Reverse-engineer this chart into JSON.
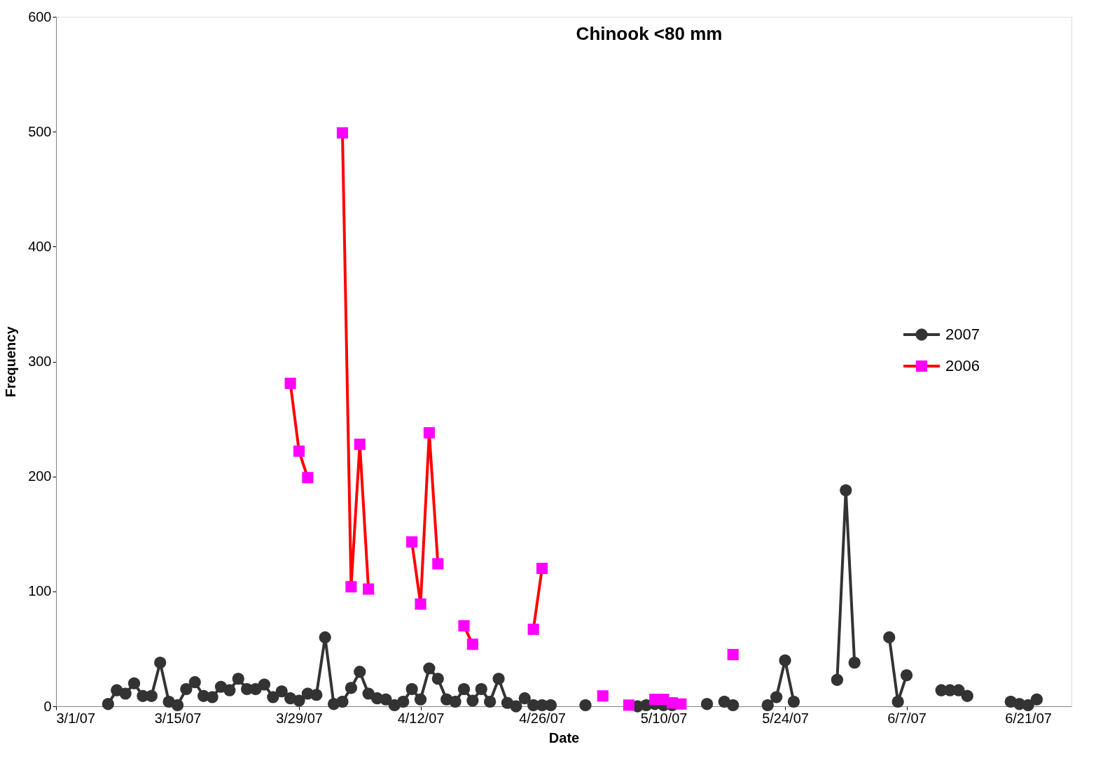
{
  "chart_data": {
    "type": "line",
    "title": "Chinook <80 mm",
    "xlabel": "Date",
    "ylabel": "Frequency",
    "xlim": [
      "2007-03-01",
      "2007-06-26"
    ],
    "xticks": [
      {
        "value": "2007-03-01",
        "label": "3/1/07"
      },
      {
        "value": "2007-03-15",
        "label": "3/15/07"
      },
      {
        "value": "2007-03-29",
        "label": "3/29/07"
      },
      {
        "value": "2007-04-12",
        "label": "4/12/07"
      },
      {
        "value": "2007-04-26",
        "label": "4/26/07"
      },
      {
        "value": "2007-05-10",
        "label": "5/10/07"
      },
      {
        "value": "2007-05-24",
        "label": "5/24/07"
      },
      {
        "value": "2007-06-07",
        "label": "6/7/07"
      },
      {
        "value": "2007-06-21",
        "label": "6/21/07"
      }
    ],
    "ylim": [
      0,
      600
    ],
    "yticks": [
      0,
      100,
      200,
      300,
      400,
      500,
      600
    ],
    "grid": false,
    "legend": "right",
    "series": [
      {
        "name": "2007",
        "color": "#333333",
        "marker": "circle",
        "x": [
          "2007-03-07",
          "2007-03-08",
          "2007-03-09",
          "2007-03-10",
          "2007-03-11",
          "2007-03-12",
          "2007-03-13",
          "2007-03-14",
          "2007-03-15",
          "2007-03-16",
          "2007-03-17",
          "2007-03-18",
          "2007-03-19",
          "2007-03-20",
          "2007-03-21",
          "2007-03-22",
          "2007-03-23",
          "2007-03-24",
          "2007-03-25",
          "2007-03-26",
          "2007-03-27",
          "2007-03-28",
          "2007-03-29",
          "2007-03-30",
          "2007-03-31",
          "2007-04-01",
          "2007-04-02",
          "2007-04-03",
          "2007-04-04",
          "2007-04-05",
          "2007-04-06",
          "2007-04-07",
          "2007-04-08",
          "2007-04-09",
          "2007-04-10",
          "2007-04-11",
          "2007-04-12",
          "2007-04-13",
          "2007-04-14",
          "2007-04-15",
          "2007-04-16",
          "2007-04-17",
          "2007-04-18",
          "2007-04-19",
          "2007-04-20",
          "2007-04-21",
          "2007-04-22",
          "2007-04-23",
          "2007-04-24",
          "2007-04-25",
          "2007-04-26",
          "2007-04-27",
          "2007-04-28",
          "2007-05-01",
          "2007-05-02",
          "2007-05-07",
          "2007-05-08",
          "2007-05-09",
          "2007-05-10",
          "2007-05-11",
          "2007-05-12",
          "2007-05-15",
          "2007-05-16",
          "2007-05-17",
          "2007-05-18",
          "2007-05-19",
          "2007-05-22",
          "2007-05-23",
          "2007-05-24",
          "2007-05-25",
          "2007-05-26",
          "2007-05-30",
          "2007-05-31",
          "2007-06-01",
          "2007-06-02",
          "2007-06-05",
          "2007-06-06",
          "2007-06-07",
          "2007-06-08",
          "2007-06-11",
          "2007-06-12",
          "2007-06-13",
          "2007-06-14",
          "2007-06-15",
          "2007-06-19",
          "2007-06-20",
          "2007-06-21",
          "2007-06-22"
        ],
        "values": [
          2,
          14,
          11,
          20,
          9,
          9,
          38,
          4,
          1,
          15,
          21,
          9,
          8,
          17,
          14,
          24,
          15,
          15,
          19,
          8,
          13,
          7,
          5,
          11,
          10,
          60,
          2,
          4,
          16,
          30,
          11,
          7,
          6,
          1,
          4,
          15,
          6,
          33,
          24,
          6,
          4,
          15,
          5,
          15,
          4,
          24,
          3,
          0,
          7,
          1,
          1,
          1,
          null,
          1,
          null,
          0,
          1,
          2,
          1,
          1,
          null,
          2,
          null,
          4,
          1,
          null,
          1,
          8,
          40,
          4,
          null,
          23,
          188,
          38,
          null,
          60,
          4,
          27,
          null,
          14,
          14,
          14,
          9,
          null,
          4,
          2,
          1,
          6
        ]
      },
      {
        "name": "2006",
        "color": "#ff0000",
        "marker": "square",
        "x": [
          "2007-03-28",
          "2007-03-29",
          "2007-03-30",
          "2007-03-31",
          "2007-04-03",
          "2007-04-04",
          "2007-04-05",
          "2007-04-06",
          "2007-04-07",
          "2007-04-11",
          "2007-04-12",
          "2007-04-13",
          "2007-04-14",
          "2007-04-15",
          "2007-04-17",
          "2007-04-18",
          "2007-04-19",
          "2007-04-25",
          "2007-04-26",
          "2007-04-27",
          "2007-05-03",
          "2007-05-04",
          "2007-05-06",
          "2007-05-07",
          "2007-05-18"
        ],
        "values": [
          281,
          222,
          199,
          null,
          499,
          104,
          228,
          102,
          null,
          143,
          89,
          238,
          124,
          null,
          70,
          54,
          null,
          67,
          120,
          null,
          9,
          null,
          1,
          null,
          45
        ],
        "colors": [
          "#ff00ff",
          "#ff00ff",
          "#ff00ff",
          null,
          "#ff00ff",
          "#ff00ff",
          "#ff00ff",
          "#ff00ff",
          null,
          "#ff00ff",
          "#ff00ff",
          "#ff00ff",
          "#ff00ff",
          null,
          "#ff00ff",
          "#ff00ff",
          null,
          "#ff00ff",
          "#ff00ff",
          null,
          "#ff00ff",
          null,
          "#ff00ff",
          null,
          "#ff00ff"
        ]
      },
      {
        "type": "scatter",
        "color": "#ff00ff",
        "marker": "square",
        "x": [
          "2007-05-09",
          "2007-05-10",
          "2007-05-11",
          "2007-05-12"
        ],
        "values": [
          6,
          6,
          3,
          2
        ]
      }
    ]
  }
}
